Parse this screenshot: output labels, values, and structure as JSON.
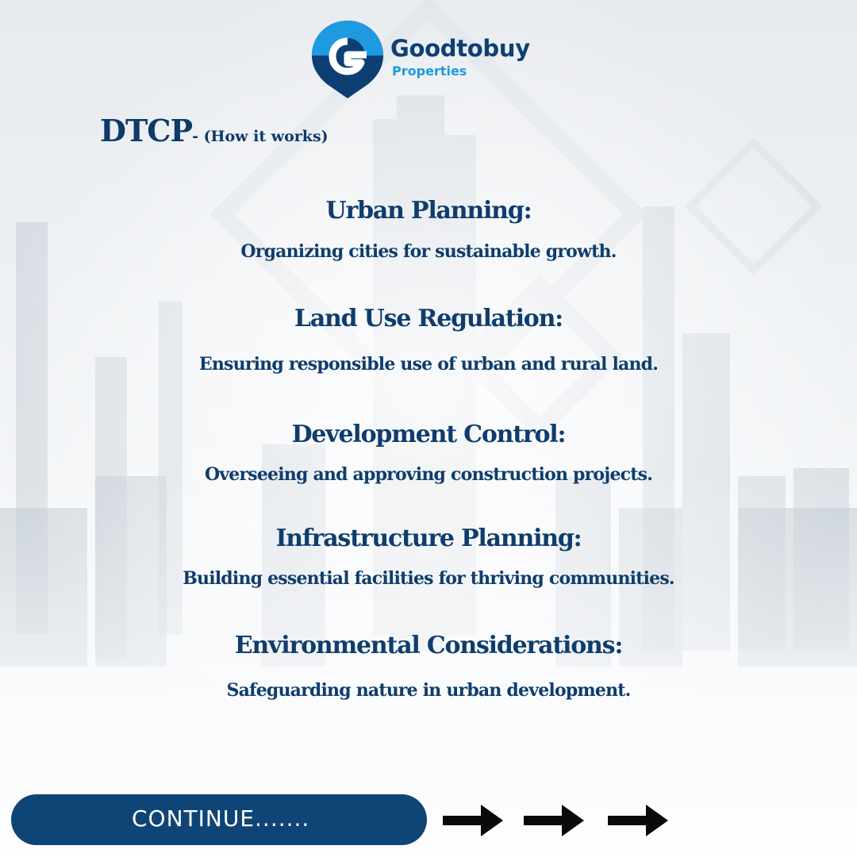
{
  "brand": {
    "name": "Goodtobuy",
    "subtitle": "Properties",
    "primary_color": "#0d3f73",
    "accent_color": "#1e9be0",
    "logo_icon": "location-pin-g-icon"
  },
  "title": {
    "main": "DTCP",
    "suffix": "- (How it works)"
  },
  "items": [
    {
      "heading": "Urban Planning:",
      "description": "Organizing cities for sustainable growth."
    },
    {
      "heading": "Land Use Regulation:",
      "description": "Ensuring responsible use of urban and rural land."
    },
    {
      "heading": "Development Control:",
      "description": "Overseeing and approving construction projects."
    },
    {
      "heading": "Infrastructure Planning:",
      "description": "Building essential facilities for thriving communities."
    },
    {
      "heading": "Environmental Considerations:",
      "description": "Safeguarding nature in urban development."
    }
  ],
  "cta": {
    "label": "CONTINUE.......",
    "color": "#0f4576",
    "arrow_icons": [
      "arrow-right-icon",
      "arrow-right-icon",
      "arrow-right-icon"
    ]
  }
}
